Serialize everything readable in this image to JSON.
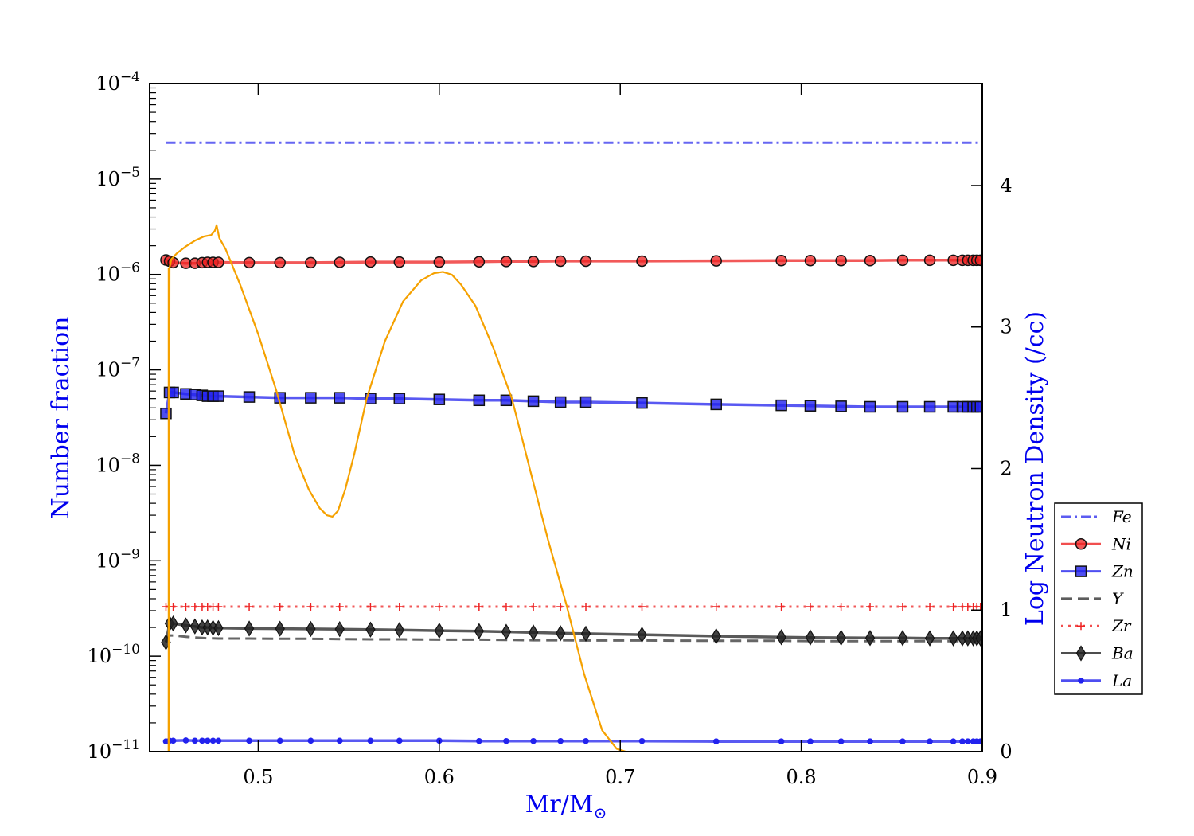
{
  "chart_data": {
    "type": "line",
    "xlabel": "Mr/M",
    "xlabel_sub": "⊙",
    "ylabel_left": "Number fraction",
    "ylabel_right": "Log Neutron Density (/cc)",
    "xlim": [
      0.44,
      0.9
    ],
    "ylim_left": [
      1e-11,
      0.0001
    ],
    "yscale_left": "log",
    "ylim_right": [
      0,
      4.72
    ],
    "x_ticks": [
      "0.5",
      "0.6",
      "0.7",
      "0.8",
      "0.9"
    ],
    "y_ticks_left": [
      {
        "base": "10",
        "exp": "−4",
        "value": -4
      },
      {
        "base": "10",
        "exp": "−5",
        "value": -5
      },
      {
        "base": "10",
        "exp": "−6",
        "value": -6
      },
      {
        "base": "10",
        "exp": "−7",
        "value": -7
      },
      {
        "base": "10",
        "exp": "−8",
        "value": -8
      },
      {
        "base": "10",
        "exp": "−9",
        "value": -9
      },
      {
        "base": "10",
        "exp": "−10",
        "value": -10
      },
      {
        "base": "10",
        "exp": "−11",
        "value": -11
      }
    ],
    "y_ticks_right": [
      "0",
      "1",
      "2",
      "3",
      "4"
    ],
    "x": [
      0.449,
      0.451,
      0.453,
      0.46,
      0.465,
      0.469,
      0.472,
      0.475,
      0.478,
      0.495,
      0.512,
      0.529,
      0.545,
      0.562,
      0.578,
      0.6,
      0.622,
      0.637,
      0.652,
      0.667,
      0.681,
      0.712,
      0.753,
      0.789,
      0.805,
      0.822,
      0.838,
      0.856,
      0.871,
      0.884,
      0.889,
      0.892,
      0.895,
      0.897,
      0.899
    ],
    "series": [
      {
        "name": "Fe",
        "color": "#3333ee",
        "dash": "dashdot",
        "marker": "none",
        "values": [
          2.4e-05,
          2.4e-05,
          2.4e-05,
          2.4e-05,
          2.4e-05,
          2.4e-05,
          2.4e-05,
          2.4e-05,
          2.4e-05,
          2.4e-05,
          2.4e-05,
          2.4e-05,
          2.4e-05,
          2.4e-05,
          2.4e-05,
          2.4e-05,
          2.4e-05,
          2.4e-05,
          2.4e-05,
          2.4e-05,
          2.4e-05,
          2.4e-05,
          2.4e-05,
          2.4e-05,
          2.4e-05,
          2.4e-05,
          2.4e-05,
          2.4e-05,
          2.4e-05,
          2.4e-05,
          2.4e-05,
          2.4e-05,
          2.4e-05,
          2.4e-05,
          2.4e-05
        ]
      },
      {
        "name": "Ni",
        "color": "#ee2222",
        "dash": "solid",
        "marker": "circle",
        "values": [
          1.42e-06,
          1.38e-06,
          1.33e-06,
          1.31e-06,
          1.31e-06,
          1.33e-06,
          1.34e-06,
          1.34e-06,
          1.34e-06,
          1.33e-06,
          1.33e-06,
          1.33e-06,
          1.34e-06,
          1.35e-06,
          1.35e-06,
          1.35e-06,
          1.36e-06,
          1.37e-06,
          1.37e-06,
          1.38e-06,
          1.38e-06,
          1.38e-06,
          1.39e-06,
          1.4e-06,
          1.4e-06,
          1.4e-06,
          1.4e-06,
          1.41e-06,
          1.41e-06,
          1.41e-06,
          1.41e-06,
          1.41e-06,
          1.41e-06,
          1.41e-06,
          1.41e-06
        ]
      },
      {
        "name": "Zn",
        "color": "#2222ee",
        "dash": "solid",
        "marker": "square",
        "values": [
          3.5e-08,
          5.8e-08,
          5.8e-08,
          5.6e-08,
          5.5e-08,
          5.4e-08,
          5.3e-08,
          5.3e-08,
          5.3e-08,
          5.2e-08,
          5.1e-08,
          5.1e-08,
          5.1e-08,
          5e-08,
          5e-08,
          4.9e-08,
          4.8e-08,
          4.8e-08,
          4.7e-08,
          4.6e-08,
          4.6e-08,
          4.5e-08,
          4.35e-08,
          4.25e-08,
          4.2e-08,
          4.15e-08,
          4.1e-08,
          4.1e-08,
          4.1e-08,
          4.1e-08,
          4.1e-08,
          4.1e-08,
          4.1e-08,
          4.1e-08,
          4.1e-08
        ]
      },
      {
        "name": "Y",
        "color": "#333333",
        "dash": "dashed",
        "marker": "none",
        "values": [
          1.4e-10,
          1.65e-10,
          1.65e-10,
          1.6e-10,
          1.57e-10,
          1.55e-10,
          1.54e-10,
          1.54e-10,
          1.53e-10,
          1.53e-10,
          1.52e-10,
          1.52e-10,
          1.51e-10,
          1.5e-10,
          1.5e-10,
          1.49e-10,
          1.49e-10,
          1.48e-10,
          1.47e-10,
          1.47e-10,
          1.46e-10,
          1.46e-10,
          1.45e-10,
          1.45e-10,
          1.44e-10,
          1.44e-10,
          1.44e-10,
          1.44e-10,
          1.44e-10,
          1.44e-10,
          1.44e-10,
          1.44e-10,
          1.44e-10,
          1.44e-10,
          1.44e-10
        ]
      },
      {
        "name": "Zr",
        "color": "#ee2222",
        "dash": "dotted",
        "marker": "plus",
        "values": [
          3.3e-10,
          3.3e-10,
          3.3e-10,
          3.3e-10,
          3.3e-10,
          3.3e-10,
          3.3e-10,
          3.3e-10,
          3.3e-10,
          3.3e-10,
          3.3e-10,
          3.3e-10,
          3.3e-10,
          3.3e-10,
          3.3e-10,
          3.3e-10,
          3.3e-10,
          3.3e-10,
          3.3e-10,
          3.3e-10,
          3.3e-10,
          3.3e-10,
          3.3e-10,
          3.3e-10,
          3.3e-10,
          3.3e-10,
          3.3e-10,
          3.3e-10,
          3.3e-10,
          3.3e-10,
          3.3e-10,
          3.3e-10,
          3.3e-10,
          3.3e-10,
          3.3e-10
        ]
      },
      {
        "name": "Ba",
        "color": "#222222",
        "dash": "solid",
        "marker": "diamond",
        "values": [
          1.4e-10,
          2.2e-10,
          2.2e-10,
          2.1e-10,
          2.05e-10,
          2e-10,
          2e-10,
          1.98e-10,
          1.97e-10,
          1.95e-10,
          1.94e-10,
          1.93e-10,
          1.92e-10,
          1.9e-10,
          1.88e-10,
          1.85e-10,
          1.83e-10,
          1.8e-10,
          1.77e-10,
          1.74e-10,
          1.72e-10,
          1.68e-10,
          1.62e-10,
          1.58e-10,
          1.57e-10,
          1.56e-10,
          1.55e-10,
          1.55e-10,
          1.54e-10,
          1.54e-10,
          1.54e-10,
          1.54e-10,
          1.54e-10,
          1.54e-10,
          1.54e-10
        ]
      },
      {
        "name": "La",
        "color": "#2222ee",
        "dash": "solid",
        "marker": "dot",
        "values": [
          1.28e-11,
          1.3e-11,
          1.3e-11,
          1.31e-11,
          1.3e-11,
          1.3e-11,
          1.3e-11,
          1.3e-11,
          1.3e-11,
          1.3e-11,
          1.3e-11,
          1.3e-11,
          1.3e-11,
          1.3e-11,
          1.3e-11,
          1.3e-11,
          1.29e-11,
          1.29e-11,
          1.29e-11,
          1.29e-11,
          1.29e-11,
          1.29e-11,
          1.28e-11,
          1.28e-11,
          1.28e-11,
          1.28e-11,
          1.28e-11,
          1.28e-11,
          1.28e-11,
          1.28e-11,
          1.28e-11,
          1.28e-11,
          1.28e-11,
          1.28e-11,
          1.28e-11
        ]
      }
    ],
    "neutron_density": {
      "color": "#f5a100",
      "axis": "right",
      "x": [
        0.4505,
        0.451,
        0.452,
        0.455,
        0.46,
        0.465,
        0.47,
        0.474,
        0.476,
        0.477,
        0.4785,
        0.482,
        0.49,
        0.5,
        0.51,
        0.52,
        0.528,
        0.534,
        0.538,
        0.541,
        0.544,
        0.548,
        0.553,
        0.56,
        0.57,
        0.58,
        0.59,
        0.597,
        0.602,
        0.607,
        0.612,
        0.62,
        0.63,
        0.64,
        0.65,
        0.66,
        0.67,
        0.68,
        0.69,
        0.698,
        0.703
      ],
      "y": [
        0.0,
        3.42,
        3.48,
        3.52,
        3.57,
        3.61,
        3.64,
        3.65,
        3.68,
        3.72,
        3.63,
        3.55,
        3.3,
        2.95,
        2.55,
        2.1,
        1.85,
        1.72,
        1.67,
        1.66,
        1.7,
        1.85,
        2.1,
        2.5,
        2.9,
        3.18,
        3.33,
        3.38,
        3.39,
        3.37,
        3.3,
        3.15,
        2.85,
        2.5,
        2.0,
        1.5,
        1.05,
        0.55,
        0.15,
        0.02,
        0.0
      ]
    },
    "legend": {
      "position": "right",
      "entries": [
        "Fe",
        "Ni",
        "Zn",
        "Y",
        "Zr",
        "Ba",
        "La"
      ]
    }
  }
}
